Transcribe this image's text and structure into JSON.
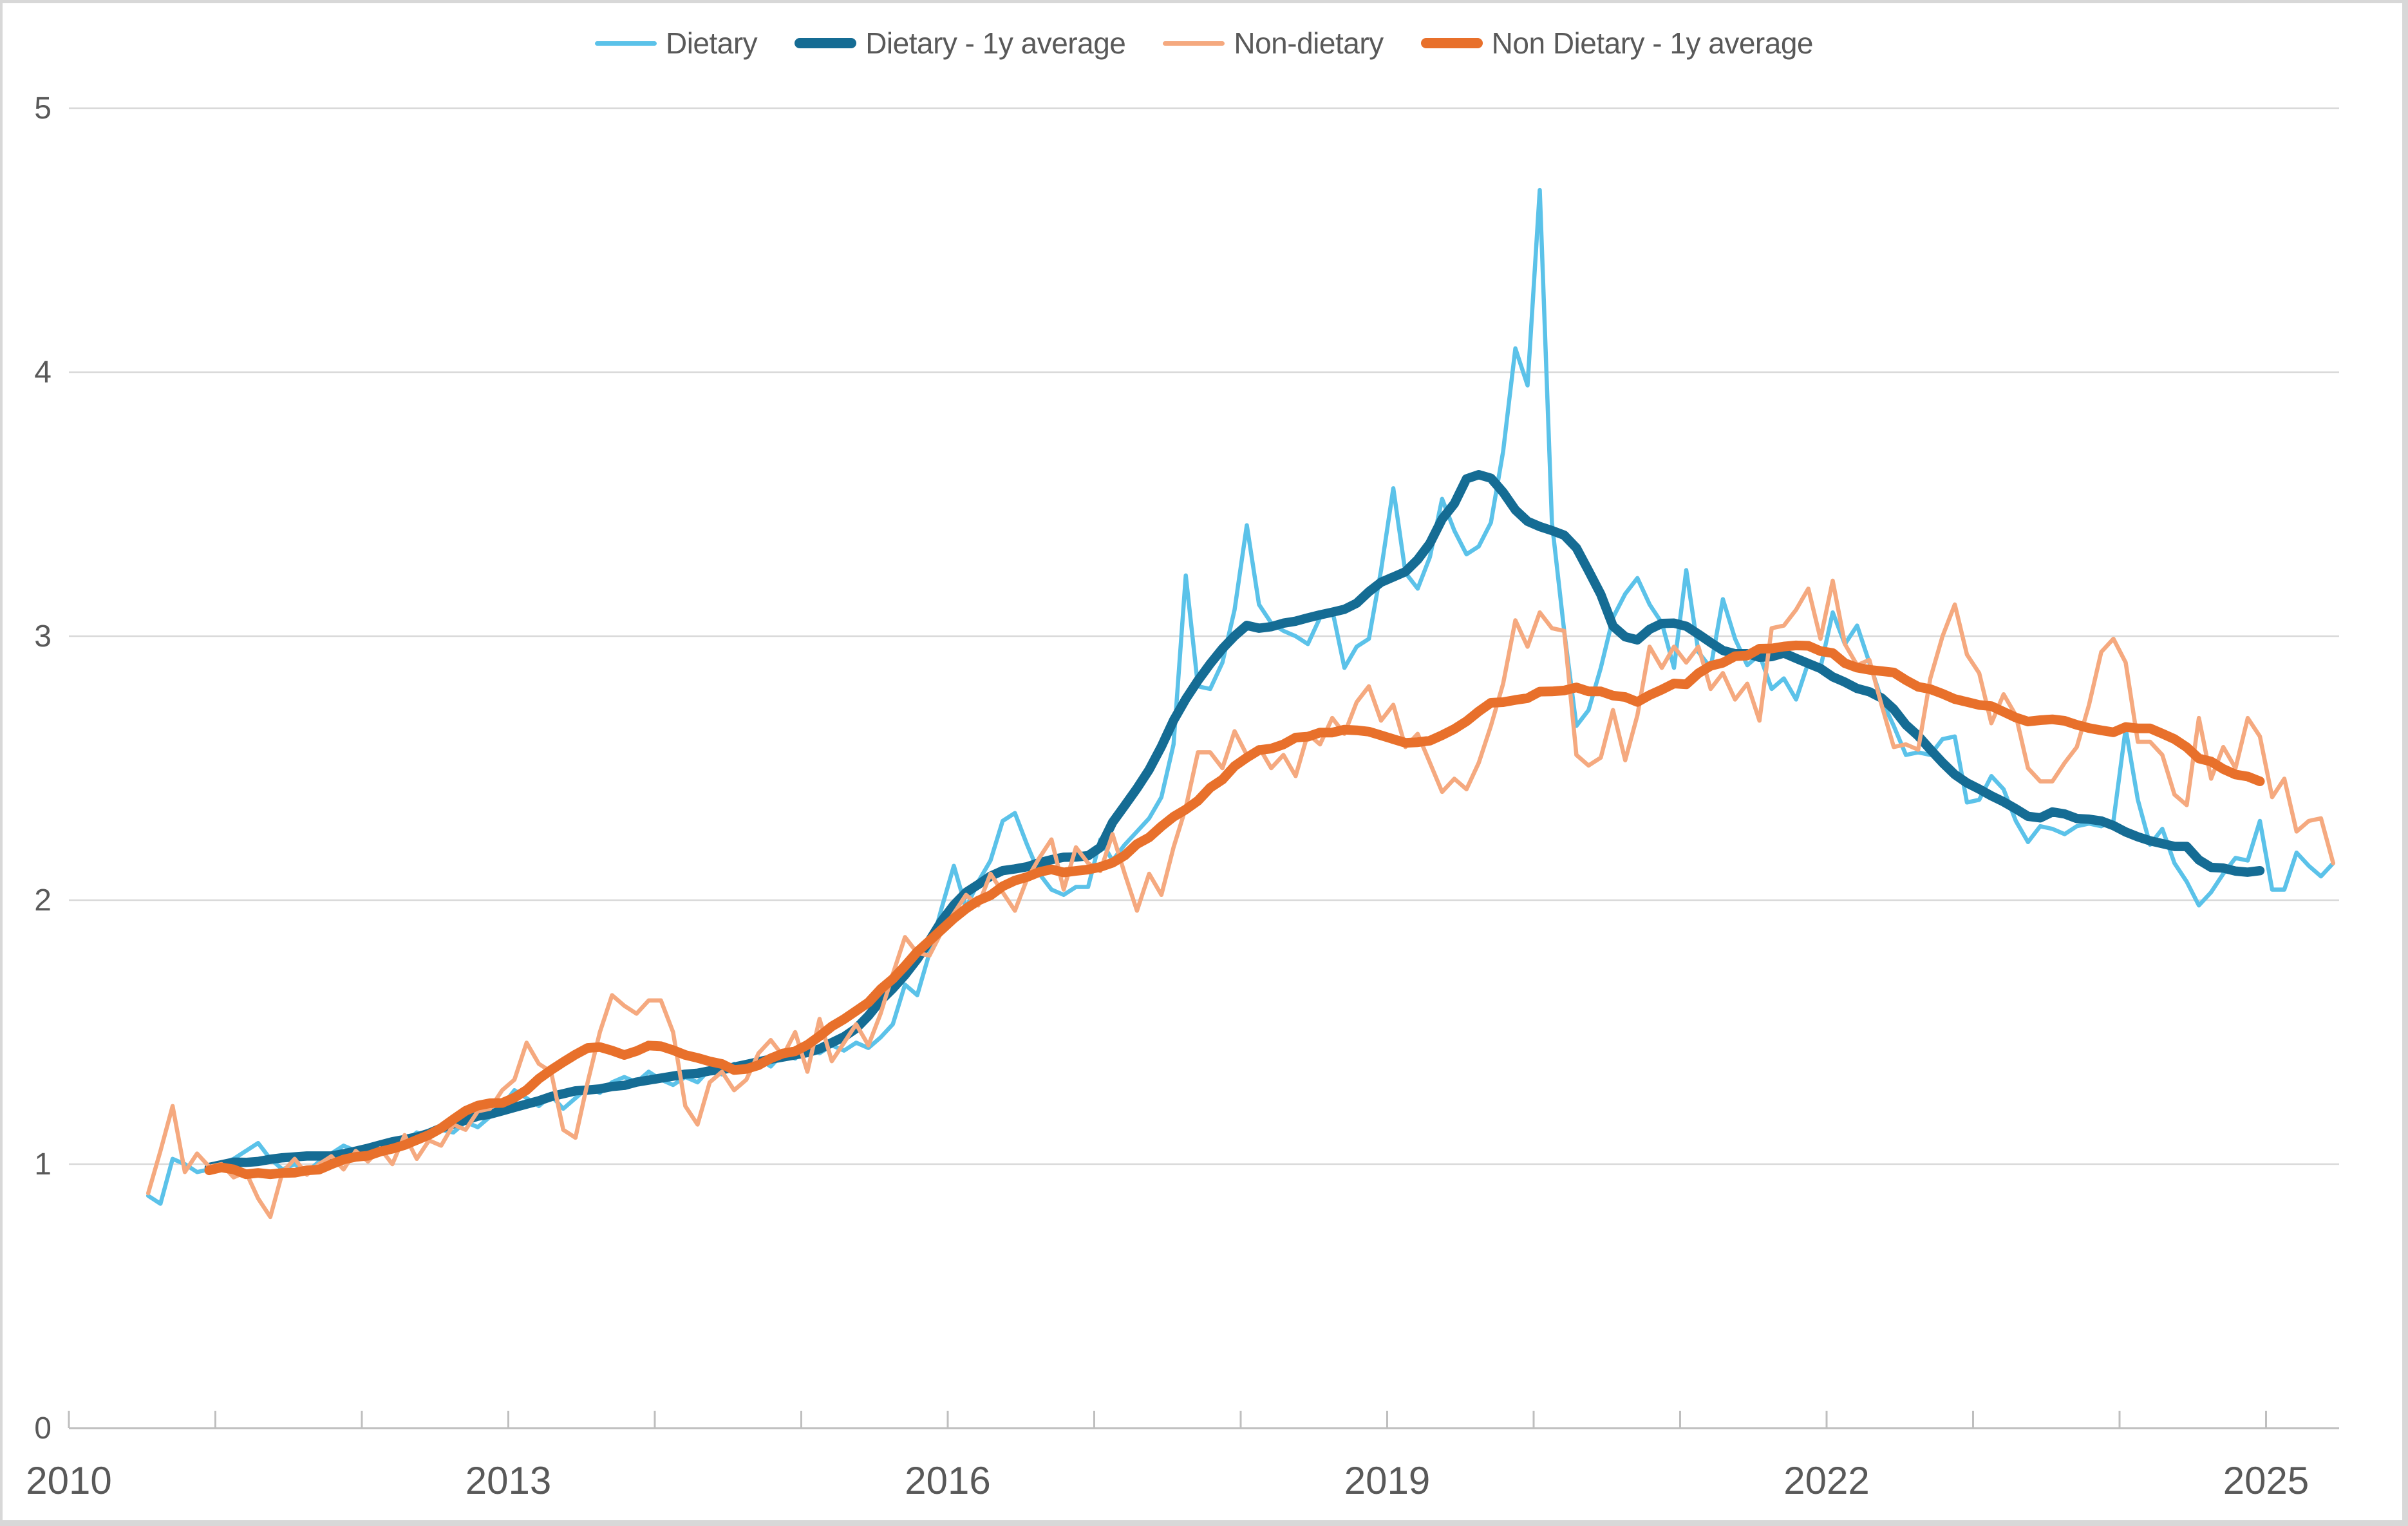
{
  "window": {
    "background_color": "#ffffff",
    "frame_color": "#d8d8d8"
  },
  "legend": {
    "position": "top-center",
    "items": [
      {
        "label": "Dietary"
      },
      {
        "label": "Dietary - 1y average"
      },
      {
        "label": "Non-dietary"
      },
      {
        "label": "Non Dietary - 1y average"
      }
    ]
  },
  "colors": {
    "dietary": "#5BC2E9",
    "dietary_avg": "#156C94",
    "non_dietary": "#F5A97F",
    "non_dietary_avg": "#E8702B",
    "gridline": "#D9D9D9",
    "axis_line": "#BFBFBF",
    "tick_label": "#595959",
    "legend_text": "#595959"
  },
  "chart_data": {
    "type": "line",
    "title": "",
    "xlabel": "",
    "ylabel": "",
    "grid": "horizontal-only",
    "legend_position": "top-center",
    "frequency": "monthly",
    "start": {
      "year": 2010,
      "month": 7
    },
    "x_axis": {
      "tick_years": [
        2010,
        2011,
        2012,
        2013,
        2014,
        2015,
        2016,
        2017,
        2018,
        2019,
        2020,
        2021,
        2022,
        2023,
        2024,
        2025
      ],
      "labeled_years": [
        "2010",
        "2013",
        "2016",
        "2019",
        "2022",
        "2025"
      ]
    },
    "y_axis": {
      "min": 0,
      "max": 5,
      "tick_values": [
        0,
        1,
        2,
        3,
        4,
        5
      ],
      "tick_labels": [
        "0",
        "1",
        "2",
        "3",
        "4",
        "5"
      ]
    },
    "series": [
      {
        "name": "Dietary",
        "kind": "raw",
        "color": "#5BC2E9",
        "stroke_width": 6.5,
        "values": [
          0.88,
          0.85,
          1.02,
          1.0,
          0.97,
          0.98,
          1.0,
          1.02,
          1.05,
          1.08,
          1.02,
          0.98,
          1.0,
          0.97,
          1.01,
          1.04,
          1.07,
          1.05,
          1.04,
          1.06,
          1.05,
          1.08,
          1.12,
          1.1,
          1.13,
          1.12,
          1.16,
          1.14,
          1.18,
          1.22,
          1.28,
          1.25,
          1.22,
          1.26,
          1.21,
          1.25,
          1.29,
          1.27,
          1.31,
          1.33,
          1.31,
          1.35,
          1.32,
          1.3,
          1.33,
          1.31,
          1.36,
          1.34,
          1.38,
          1.36,
          1.4,
          1.37,
          1.42,
          1.4,
          1.44,
          1.42,
          1.45,
          1.43,
          1.46,
          1.44,
          1.48,
          1.53,
          1.68,
          1.64,
          1.8,
          1.97,
          2.13,
          1.97,
          2.07,
          2.15,
          2.3,
          2.33,
          2.21,
          2.1,
          2.04,
          2.02,
          2.05,
          2.05,
          2.23,
          2.15,
          2.21,
          2.26,
          2.31,
          2.39,
          2.59,
          3.23,
          2.81,
          2.8,
          2.9,
          3.1,
          3.42,
          3.12,
          3.05,
          3.02,
          3.0,
          2.97,
          3.07,
          3.1,
          2.88,
          2.96,
          2.99,
          3.25,
          3.56,
          3.24,
          3.18,
          3.3,
          3.52,
          3.4,
          3.31,
          3.34,
          3.43,
          3.7,
          4.09,
          3.95,
          4.69,
          3.43,
          3.02,
          2.66,
          2.72,
          2.88,
          3.07,
          3.16,
          3.22,
          3.12,
          3.05,
          2.88,
          3.25,
          2.94,
          2.88,
          3.14,
          2.99,
          2.89,
          2.93,
          2.8,
          2.84,
          2.76,
          2.9,
          2.88,
          3.09,
          2.97,
          3.04,
          2.9,
          2.76,
          2.66,
          2.55,
          2.56,
          2.55,
          2.61,
          2.62,
          2.37,
          2.38,
          2.47,
          2.42,
          2.3,
          2.22,
          2.28,
          2.27,
          2.25,
          2.28,
          2.29,
          2.28,
          2.3,
          2.65,
          2.38,
          2.21,
          2.27,
          2.14,
          2.07,
          1.98,
          2.03,
          2.1,
          2.16,
          2.15,
          2.3,
          2.04,
          2.04,
          2.18,
          2.13,
          2.09,
          2.14
        ]
      },
      {
        "name": "Dietary - 1y average",
        "kind": "derived",
        "derivation": "centered 12-month moving average of Dietary",
        "source_index": 0,
        "color": "#156C94",
        "stroke_width": 14.5
      },
      {
        "name": "Non-dietary",
        "kind": "raw",
        "color": "#F5A97F",
        "stroke_width": 6.5,
        "values": [
          0.89,
          1.05,
          1.22,
          0.97,
          1.04,
          0.99,
          1.0,
          0.95,
          0.97,
          0.87,
          0.8,
          0.97,
          1.02,
          0.96,
          1.0,
          1.03,
          0.98,
          1.05,
          1.01,
          1.06,
          1.0,
          1.11,
          1.02,
          1.09,
          1.07,
          1.15,
          1.13,
          1.2,
          1.21,
          1.28,
          1.32,
          1.46,
          1.38,
          1.35,
          1.13,
          1.1,
          1.31,
          1.5,
          1.64,
          1.6,
          1.57,
          1.62,
          1.62,
          1.5,
          1.22,
          1.15,
          1.31,
          1.35,
          1.28,
          1.32,
          1.42,
          1.47,
          1.41,
          1.5,
          1.35,
          1.55,
          1.39,
          1.46,
          1.53,
          1.45,
          1.57,
          1.72,
          1.86,
          1.8,
          1.79,
          1.88,
          1.95,
          2.02,
          1.98,
          2.1,
          2.03,
          1.96,
          2.08,
          2.16,
          2.23,
          2.04,
          2.2,
          2.14,
          2.11,
          2.25,
          2.1,
          1.96,
          2.1,
          2.02,
          2.2,
          2.35,
          2.56,
          2.56,
          2.5,
          2.64,
          2.55,
          2.58,
          2.5,
          2.55,
          2.47,
          2.63,
          2.59,
          2.69,
          2.63,
          2.75,
          2.81,
          2.68,
          2.74,
          2.58,
          2.63,
          2.52,
          2.41,
          2.46,
          2.42,
          2.52,
          2.66,
          2.82,
          3.06,
          2.96,
          3.09,
          3.03,
          3.02,
          2.55,
          2.51,
          2.54,
          2.72,
          2.53,
          2.7,
          2.96,
          2.88,
          2.96,
          2.9,
          2.96,
          2.8,
          2.86,
          2.76,
          2.82,
          2.68,
          3.03,
          3.04,
          3.1,
          3.18,
          2.99,
          3.21,
          2.97,
          2.89,
          2.91,
          2.74,
          2.58,
          2.59,
          2.57,
          2.84,
          3.0,
          3.12,
          2.93,
          2.86,
          2.67,
          2.78,
          2.7,
          2.5,
          2.45,
          2.45,
          2.52,
          2.58,
          2.74,
          2.94,
          2.99,
          2.9,
          2.6,
          2.6,
          2.55,
          2.4,
          2.36,
          2.69,
          2.46,
          2.58,
          2.5,
          2.69,
          2.62,
          2.39,
          2.46,
          2.26,
          2.3,
          2.31,
          2.14
        ]
      },
      {
        "name": "Non Dietary - 1y average",
        "kind": "derived",
        "derivation": "centered 12-month moving average of Non-dietary",
        "source_index": 2,
        "color": "#E8702B",
        "stroke_width": 15
      }
    ]
  }
}
